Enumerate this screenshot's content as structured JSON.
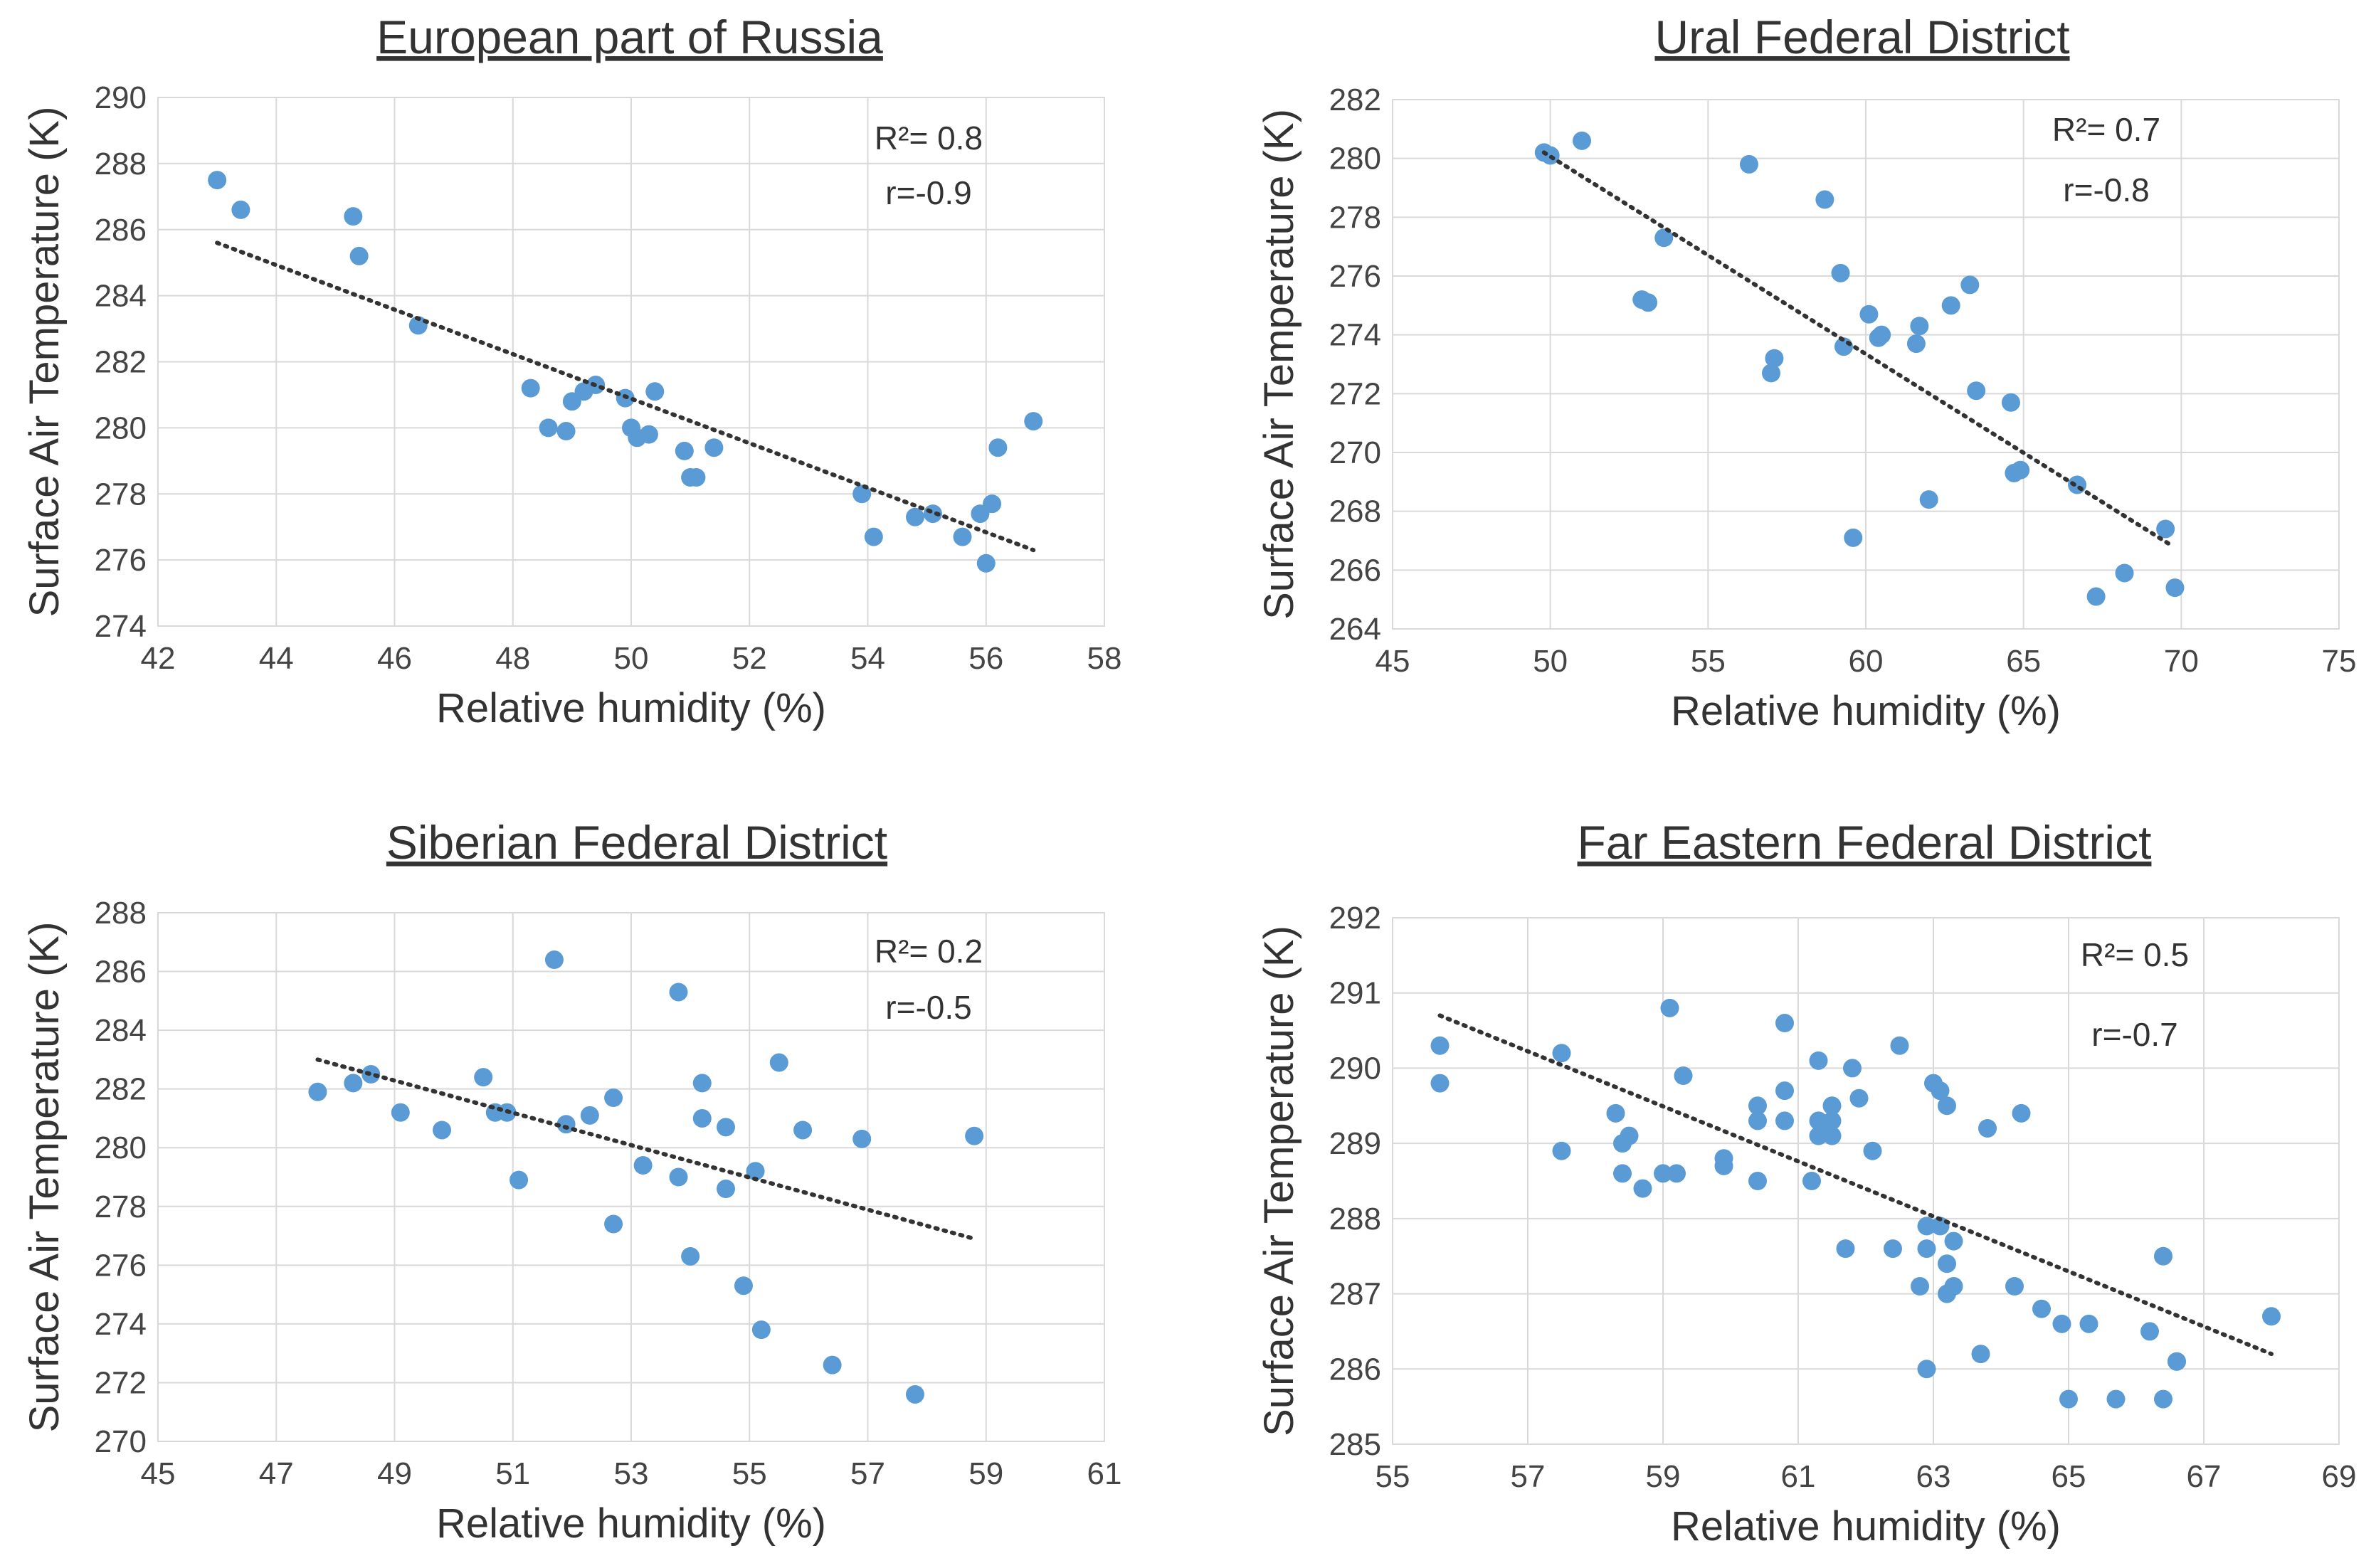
{
  "chart_data": [
    {
      "type": "scatter",
      "title": "European part of Russia",
      "xlabel": "Relative humidity (%)",
      "ylabel": "Surface Air Temperature (K)",
      "xlim": [
        42,
        58
      ],
      "ylim": [
        274,
        290
      ],
      "xticks": [
        42,
        44,
        46,
        48,
        50,
        52,
        54,
        56,
        58
      ],
      "yticks": [
        274,
        276,
        278,
        280,
        282,
        284,
        286,
        288,
        290
      ],
      "grid": true,
      "r2_label": "R²= 0.8",
      "r_label": "r=-0.9",
      "trendline": {
        "x": [
          43.0,
          56.8
        ],
        "y": [
          285.6,
          276.3
        ]
      },
      "x": [
        43.0,
        43.4,
        45.3,
        45.4,
        46.4,
        48.3,
        48.6,
        48.9,
        49.0,
        49.2,
        49.4,
        49.9,
        50.0,
        50.1,
        50.3,
        50.4,
        50.9,
        51.0,
        51.1,
        51.4,
        53.9,
        54.1,
        54.8,
        55.1,
        55.6,
        55.9,
        56.0,
        56.1,
        56.2,
        56.8
      ],
      "y": [
        287.5,
        286.6,
        286.4,
        285.2,
        283.1,
        281.2,
        280.0,
        279.9,
        280.8,
        281.1,
        281.3,
        280.9,
        280.0,
        279.7,
        279.8,
        281.1,
        279.3,
        278.5,
        278.5,
        279.4,
        278.0,
        276.7,
        277.3,
        277.4,
        276.7,
        277.4,
        275.9,
        277.7,
        279.4,
        280.2
      ]
    },
    {
      "type": "scatter",
      "title": "Ural Federal District",
      "xlabel": "Relative humidity (%)",
      "ylabel": "Surface Air Temperature (K)",
      "xlim": [
        45,
        75
      ],
      "ylim": [
        264,
        282
      ],
      "xticks": [
        45,
        50,
        55,
        60,
        65,
        70,
        75
      ],
      "yticks": [
        264,
        266,
        268,
        270,
        272,
        274,
        276,
        278,
        280,
        282
      ],
      "grid": true,
      "r2_label": "R²= 0.7",
      "r_label": "r=-0.8",
      "trendline": {
        "x": [
          49.8,
          69.6
        ],
        "y": [
          280.2,
          266.9
        ]
      },
      "x": [
        49.8,
        50.0,
        51.0,
        52.9,
        53.1,
        53.6,
        56.3,
        57.0,
        57.1,
        58.7,
        59.2,
        59.3,
        59.6,
        60.1,
        60.4,
        60.5,
        61.6,
        61.7,
        62.0,
        62.7,
        63.3,
        63.5,
        64.6,
        64.7,
        64.9,
        66.7,
        67.3,
        68.2,
        69.5,
        69.8
      ],
      "y": [
        280.2,
        280.1,
        280.6,
        275.2,
        275.1,
        277.3,
        279.8,
        272.7,
        273.2,
        278.6,
        276.1,
        273.6,
        267.1,
        274.7,
        273.9,
        274.0,
        273.7,
        274.3,
        268.4,
        275.0,
        275.7,
        272.1,
        271.7,
        269.3,
        269.4,
        268.9,
        265.1,
        265.9,
        267.4,
        265.4
      ]
    },
    {
      "type": "scatter",
      "title": "Siberian Federal District",
      "xlabel": "Relative humidity (%)",
      "ylabel": "Surface Air Temperature (K)",
      "xlim": [
        45,
        61
      ],
      "ylim": [
        270,
        288
      ],
      "xticks": [
        45,
        47,
        49,
        51,
        53,
        55,
        57,
        59,
        61
      ],
      "yticks": [
        270,
        272,
        274,
        276,
        278,
        280,
        282,
        284,
        286,
        288
      ],
      "grid": true,
      "r2_label": "R²= 0.2",
      "r_label": "r=-0.5",
      "trendline": {
        "x": [
          47.7,
          58.8
        ],
        "y": [
          283.0,
          276.9
        ]
      },
      "x": [
        47.7,
        48.3,
        48.6,
        49.1,
        49.8,
        50.5,
        50.7,
        50.9,
        51.1,
        51.7,
        51.9,
        52.3,
        52.7,
        52.7,
        53.2,
        53.8,
        53.8,
        54.0,
        54.2,
        54.2,
        54.6,
        54.6,
        54.9,
        55.1,
        55.2,
        55.5,
        55.9,
        56.4,
        56.9,
        57.8,
        58.8
      ],
      "y": [
        281.9,
        282.2,
        282.5,
        281.2,
        280.6,
        282.4,
        281.2,
        281.2,
        278.9,
        286.4,
        280.8,
        281.1,
        277.4,
        281.7,
        279.4,
        279.0,
        285.3,
        276.3,
        281.0,
        282.2,
        278.6,
        280.7,
        275.3,
        279.2,
        273.8,
        282.9,
        280.6,
        272.6,
        280.3,
        271.6,
        280.4
      ]
    },
    {
      "type": "scatter",
      "title": "Far Eastern Federal District",
      "xlabel": "Relative humidity (%)",
      "ylabel": "Surface Air Temperature (K)",
      "xlim": [
        55,
        69
      ],
      "ylim": [
        285,
        292
      ],
      "xticks": [
        55,
        57,
        59,
        61,
        63,
        65,
        67,
        69
      ],
      "yticks": [
        285,
        286,
        287,
        288,
        289,
        290,
        291,
        292
      ],
      "grid": true,
      "r2_label": "R²= 0.5",
      "r_label": "r=-0.7",
      "trendline": {
        "x": [
          55.7,
          68.0
        ],
        "y": [
          290.7,
          286.2
        ]
      },
      "x": [
        55.7,
        55.7,
        57.5,
        57.5,
        58.3,
        58.4,
        58.4,
        58.5,
        58.7,
        59.0,
        59.1,
        59.2,
        59.3,
        59.9,
        59.9,
        60.4,
        60.4,
        60.4,
        60.8,
        60.8,
        60.8,
        61.2,
        61.3,
        61.3,
        61.3,
        61.4,
        61.5,
        61.5,
        61.5,
        61.7,
        61.8,
        61.9,
        62.1,
        62.4,
        62.5,
        62.8,
        62.9,
        62.9,
        62.9,
        63.0,
        63.1,
        63.1,
        63.2,
        63.2,
        63.2,
        63.3,
        63.3,
        63.7,
        63.8,
        64.2,
        64.3,
        64.6,
        64.9,
        65.0,
        65.3,
        65.7,
        66.2,
        66.4,
        66.4,
        66.6,
        66.6,
        68.0
      ],
      "y": [
        290.3,
        289.8,
        290.2,
        288.9,
        289.4,
        288.6,
        289.0,
        289.1,
        288.4,
        288.6,
        290.8,
        288.6,
        289.9,
        288.8,
        288.7,
        289.3,
        289.5,
        288.5,
        290.6,
        289.3,
        289.7,
        288.5,
        289.1,
        289.3,
        290.1,
        289.2,
        289.1,
        289.3,
        289.5,
        287.6,
        290.0,
        289.6,
        288.9,
        287.6,
        290.3,
        287.1,
        287.9,
        287.6,
        286.0,
        289.8,
        287.9,
        289.7,
        287.0,
        289.5,
        287.4,
        287.1,
        287.7,
        286.2,
        289.2,
        287.1,
        289.4,
        286.8,
        286.6,
        285.6,
        286.6,
        285.6,
        286.5,
        285.6,
        287.5,
        286.1,
        286.1,
        286.7
      ]
    }
  ]
}
